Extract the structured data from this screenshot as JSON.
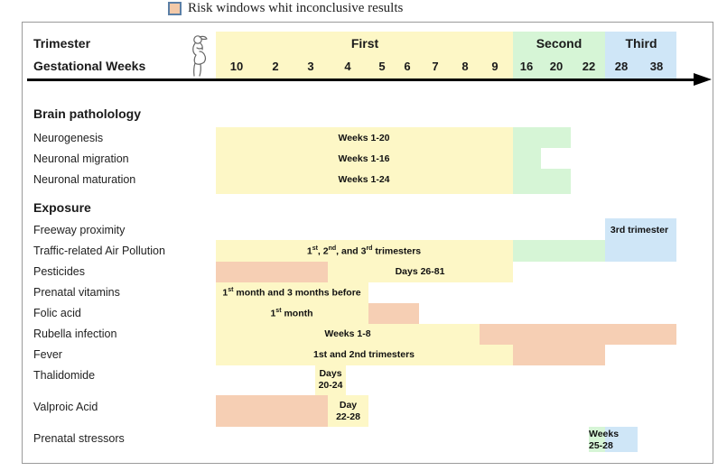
{
  "legend": {
    "text": "Risk windows whit inconclusive results",
    "color": "#f6cfb4"
  },
  "header": {
    "trimester_label": "Trimester",
    "weeks_label": "Gestational Weeks",
    "trimesters": [
      "First",
      "Second",
      "Third"
    ],
    "weeks": [
      "10",
      "2",
      "3",
      "4",
      "5",
      "6",
      "7",
      "8",
      "9",
      "16",
      "20",
      "22",
      "28",
      "38"
    ]
  },
  "sections": {
    "brain": "Brain patholology",
    "exposure": "Exposure"
  },
  "rows": {
    "neurogenesis": {
      "label": "Neurogenesis",
      "text": "Weeks 1-20"
    },
    "migration": {
      "label": "Neuronal migration",
      "text": "Weeks 1-16"
    },
    "maturation": {
      "label": "Neuronal maturation",
      "text": "Weeks 1-24"
    },
    "freeway": {
      "label": "Freeway proximity",
      "text": "3rd trimester"
    },
    "traffic": {
      "label": "Traffic-related Air Pollution",
      "t1": "1",
      "s1": "st",
      "t2": ", 2",
      "s2": "nd",
      "t3": ", and 3",
      "s3": "rd",
      "t4": " trimesters"
    },
    "pesticides": {
      "label": "Pesticides",
      "text": "Days 26-81"
    },
    "vitamins": {
      "label": "Prenatal vitamins",
      "t1": "1",
      "s1": "st",
      "t2": " month and 3 months before"
    },
    "folic": {
      "label": "Folic acid",
      "t1": "1",
      "s1": "st",
      "t2": " month"
    },
    "rubella": {
      "label": "Rubella infection",
      "text": "Weeks 1-8"
    },
    "fever": {
      "label": "Fever",
      "text": "1st and 2nd trimesters"
    },
    "thalidomide": {
      "label": "Thalidomide",
      "line1": "Days",
      "line2": "20-24"
    },
    "valproic": {
      "label": "Valproic Acid",
      "line1": "Day",
      "line2": "22-28"
    },
    "stressors": {
      "label": "Prenatal stressors",
      "line1": "Weeks",
      "line2": "25-28"
    }
  },
  "colors": {
    "yellow": "#fdf7c6",
    "green": "#d6f5d6",
    "blue": "#cfe6f7",
    "peach": "#f6cfb4"
  }
}
